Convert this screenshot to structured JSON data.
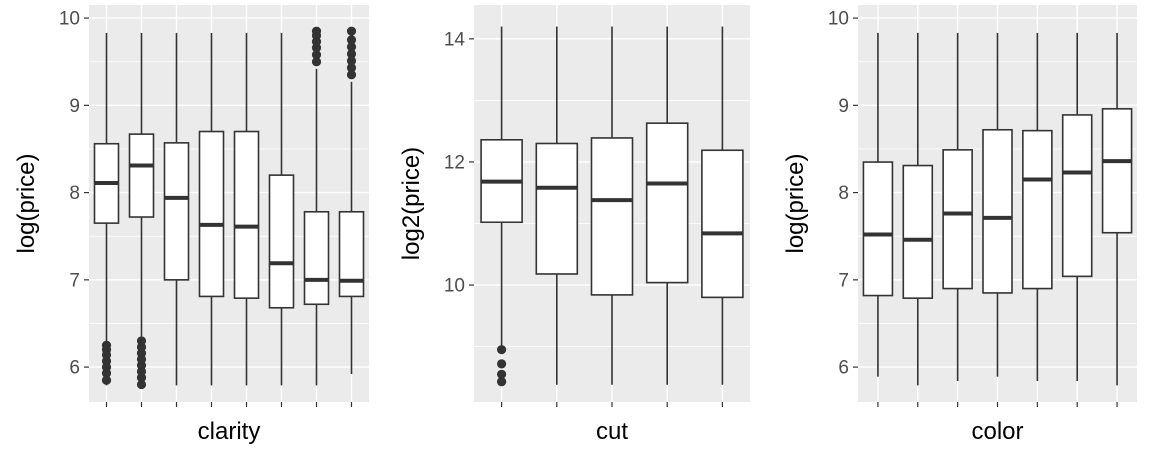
{
  "chart_data": [
    {
      "type": "boxplot",
      "xlabel": "clarity",
      "ylabel": "log(price)",
      "ylim": [
        5.6,
        10.15
      ],
      "yticks": [
        6,
        7,
        8,
        9,
        10
      ],
      "grid": true,
      "boxes": [
        {
          "whisker_low": 5.79,
          "q1": 7.65,
          "median": 8.11,
          "q3": 8.56,
          "whisker_high": 9.83,
          "outliers": [
            5.85,
            5.93,
            6.0,
            6.07,
            6.14,
            6.2,
            6.25
          ]
        },
        {
          "whisker_low": 5.79,
          "q1": 7.72,
          "median": 8.31,
          "q3": 8.67,
          "whisker_high": 9.83,
          "outliers": [
            5.8,
            5.88,
            5.95,
            6.02,
            6.09,
            6.16,
            6.23,
            6.3
          ]
        },
        {
          "whisker_low": 5.79,
          "q1": 7.0,
          "median": 7.94,
          "q3": 8.57,
          "whisker_high": 9.83,
          "outliers": []
        },
        {
          "whisker_low": 5.79,
          "q1": 6.81,
          "median": 7.63,
          "q3": 8.7,
          "whisker_high": 9.83,
          "outliers": []
        },
        {
          "whisker_low": 5.79,
          "q1": 6.79,
          "median": 7.61,
          "q3": 8.7,
          "whisker_high": 9.83,
          "outliers": []
        },
        {
          "whisker_low": 5.79,
          "q1": 6.68,
          "median": 7.19,
          "q3": 8.2,
          "whisker_high": 9.83,
          "outliers": []
        },
        {
          "whisker_low": 5.79,
          "q1": 6.72,
          "median": 7.0,
          "q3": 7.78,
          "whisker_high": 9.42,
          "outliers": [
            9.5,
            9.58,
            9.66,
            9.73,
            9.8,
            9.85
          ]
        },
        {
          "whisker_low": 5.92,
          "q1": 6.81,
          "median": 6.99,
          "q3": 7.78,
          "whisker_high": 9.27,
          "outliers": [
            9.35,
            9.43,
            9.51,
            9.59,
            9.67,
            9.75,
            9.85
          ]
        }
      ]
    },
    {
      "type": "boxplot",
      "xlabel": "cut",
      "ylabel": "log2(price)",
      "ylim": [
        8.1,
        14.55
      ],
      "yticks": [
        10,
        12,
        14
      ],
      "grid": true,
      "boxes": [
        {
          "whisker_low": 8.98,
          "q1": 11.02,
          "median": 11.68,
          "q3": 12.36,
          "whisker_high": 14.2,
          "outliers": [
            8.43,
            8.55,
            8.72,
            8.95
          ]
        },
        {
          "whisker_low": 8.38,
          "q1": 10.18,
          "median": 11.58,
          "q3": 12.3,
          "whisker_high": 14.2,
          "outliers": []
        },
        {
          "whisker_low": 8.38,
          "q1": 9.84,
          "median": 11.38,
          "q3": 12.39,
          "whisker_high": 14.2,
          "outliers": []
        },
        {
          "whisker_low": 8.38,
          "q1": 10.04,
          "median": 11.65,
          "q3": 12.63,
          "whisker_high": 14.2,
          "outliers": []
        },
        {
          "whisker_low": 8.38,
          "q1": 9.8,
          "median": 10.84,
          "q3": 12.19,
          "whisker_high": 14.2,
          "outliers": []
        }
      ]
    },
    {
      "type": "boxplot",
      "xlabel": "color",
      "ylabel": "log(price)",
      "ylim": [
        5.6,
        10.15
      ],
      "yticks": [
        6,
        7,
        8,
        9,
        10
      ],
      "grid": true,
      "boxes": [
        {
          "whisker_low": 5.89,
          "q1": 6.82,
          "median": 7.52,
          "q3": 8.35,
          "whisker_high": 9.83,
          "outliers": []
        },
        {
          "whisker_low": 5.79,
          "q1": 6.79,
          "median": 7.46,
          "q3": 8.31,
          "whisker_high": 9.83,
          "outliers": []
        },
        {
          "whisker_low": 5.84,
          "q1": 6.9,
          "median": 7.76,
          "q3": 8.49,
          "whisker_high": 9.83,
          "outliers": []
        },
        {
          "whisker_low": 5.89,
          "q1": 6.85,
          "median": 7.71,
          "q3": 8.72,
          "whisker_high": 9.83,
          "outliers": []
        },
        {
          "whisker_low": 5.84,
          "q1": 6.9,
          "median": 8.15,
          "q3": 8.71,
          "whisker_high": 9.83,
          "outliers": []
        },
        {
          "whisker_low": 5.84,
          "q1": 7.04,
          "median": 8.23,
          "q3": 8.89,
          "whisker_high": 9.83,
          "outliers": []
        },
        {
          "whisker_low": 5.79,
          "q1": 7.54,
          "median": 8.36,
          "q3": 8.96,
          "whisker_high": 9.83,
          "outliers": []
        }
      ]
    }
  ]
}
